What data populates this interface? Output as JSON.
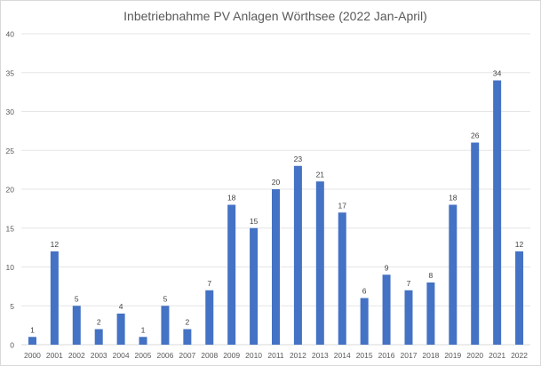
{
  "chart_data": {
    "type": "bar",
    "title": "Inbetriebnahme PV Anlagen Wörthsee (2022 Jan-April)",
    "xlabel": "",
    "ylabel": "",
    "categories": [
      "2000",
      "2001",
      "2002",
      "2003",
      "2004",
      "2005",
      "2006",
      "2007",
      "2008",
      "2009",
      "2010",
      "2011",
      "2012",
      "2013",
      "2014",
      "2015",
      "2016",
      "2017",
      "2018",
      "2019",
      "2020",
      "2021",
      "2022"
    ],
    "values": [
      1,
      12,
      5,
      2,
      4,
      1,
      5,
      2,
      7,
      18,
      15,
      20,
      23,
      21,
      17,
      6,
      9,
      7,
      8,
      18,
      26,
      34,
      12
    ],
    "ylim": [
      0,
      40
    ],
    "yticks": [
      0,
      5,
      10,
      15,
      20,
      25,
      30,
      35,
      40
    ],
    "grid": true,
    "legend": "none",
    "data_labels": true,
    "bar_color": "#4472C4"
  }
}
